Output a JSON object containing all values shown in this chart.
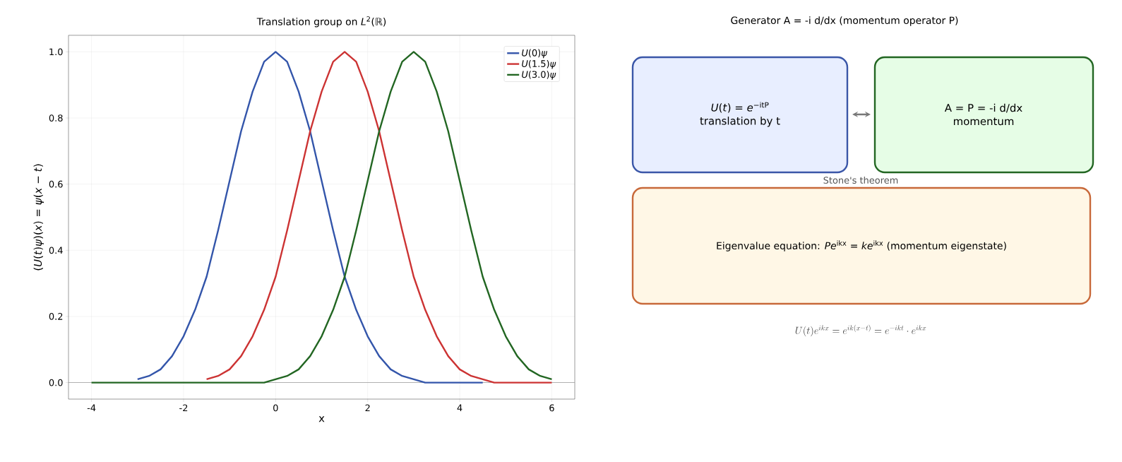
{
  "chart_data": [
    {
      "type": "line",
      "title": "Translation group on *L*$^{2}$(ℝ)",
      "xlabel": "x",
      "ylabel": "(*U*(*t*)*ψ*)(*x*) = *ψ*(*x* − *t*)",
      "x": [
        -4,
        -3.75,
        -3.5,
        -3.25,
        -3,
        -2.75,
        -2.5,
        -2.25,
        -2,
        -1.75,
        -1.5,
        -1.25,
        -1,
        -0.75,
        -0.5,
        -0.25,
        0,
        0.25,
        0.5,
        0.75,
        1,
        1.25,
        1.5,
        1.75,
        2,
        2.25,
        2.5,
        2.75,
        3,
        3.25,
        3.5,
        3.75,
        4,
        4.25,
        4.5,
        4.75,
        5,
        5.25,
        5.5,
        5.75,
        6
      ],
      "series": [
        {
          "name": "*U*(0)*ψ*",
          "color": "#3355aa",
          "values": [
            null,
            null,
            null,
            null,
            0.01,
            0.02,
            0.04,
            0.08,
            0.14,
            0.22,
            0.32,
            0.46,
            0.61,
            0.76,
            0.88,
            0.97,
            1,
            0.97,
            0.88,
            0.76,
            0.61,
            0.46,
            0.32,
            0.22,
            0.14,
            0.08,
            0.04,
            0.02,
            0.01,
            0,
            0,
            0,
            0,
            0,
            0,
            null,
            null,
            null,
            null,
            null,
            null
          ]
        },
        {
          "name": "*U*(1.5)*ψ*",
          "color": "#cc3333",
          "values": [
            null,
            null,
            null,
            null,
            null,
            null,
            null,
            null,
            null,
            null,
            0.01,
            0.02,
            0.04,
            0.08,
            0.14,
            0.22,
            0.32,
            0.46,
            0.61,
            0.76,
            0.88,
            0.97,
            1,
            0.97,
            0.88,
            0.76,
            0.61,
            0.46,
            0.32,
            0.22,
            0.14,
            0.08,
            0.04,
            0.02,
            0.01,
            0,
            0,
            0,
            0,
            0,
            0
          ]
        },
        {
          "name": "*U*(3.0)*ψ*",
          "color": "#226622",
          "values": [
            0,
            0,
            0,
            0,
            0,
            0,
            0,
            0,
            0,
            0,
            0,
            0,
            0,
            0,
            0,
            0,
            0.01,
            0.02,
            0.04,
            0.08,
            0.14,
            0.22,
            0.32,
            0.46,
            0.61,
            0.76,
            0.88,
            0.97,
            1,
            0.97,
            0.88,
            0.76,
            0.61,
            0.46,
            0.32,
            0.22,
            0.14,
            0.08,
            0.04,
            0.02,
            0.01
          ]
        }
      ],
      "xlim": [
        -4.5,
        6.5
      ],
      "ylim": [
        -0.05,
        1.05
      ],
      "xticks": [
        -4,
        -2,
        0,
        2,
        4,
        6
      ],
      "yticks": [
        {
          "value": 0,
          "label": "0.0"
        },
        {
          "value": 0.2,
          "label": "0.2"
        },
        {
          "value": 0.4,
          "label": "0.4"
        },
        {
          "value": 0.6,
          "label": "0.6"
        },
        {
          "value": 0.8,
          "label": "0.8"
        },
        {
          "value": 1,
          "label": "1.0"
        }
      ],
      "grid": true,
      "legend": "top right",
      "ref_lines": [
        {
          "axis": "y",
          "value": 0,
          "color": "#999999"
        }
      ]
    },
    {
      "type": "other",
      "title": "Generator A = -i d/dx  (momentum operator P)",
      "annotations": [
        "*U*(*t*) = *e*$^{−itP}$",
        "translation by t",
        "A = P = -i d/dx",
        "momentum",
        "Stone's theorem",
        "Eigenvalue equation: *Pe*$^{ikx}$ = *ke*$^{ikx}$   (momentum eigenstate)",
        "U(t)e^{ikx} = e^{ik(x-t)} = e^{-ikt}\\cdot e^{ikx}"
      ]
    }
  ]
}
